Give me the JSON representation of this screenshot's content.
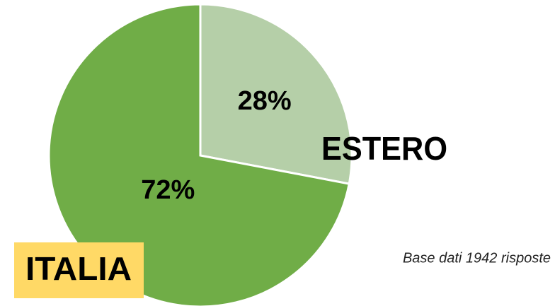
{
  "chart_data": {
    "type": "pie",
    "categories": [
      "ESTERO",
      "ITALIA"
    ],
    "values": [
      28,
      72
    ],
    "value_labels": [
      "28%",
      "72%"
    ],
    "colors": [
      "#b5cfa8",
      "#70ad47"
    ],
    "annotation": "Base dati 1942 risposte"
  }
}
